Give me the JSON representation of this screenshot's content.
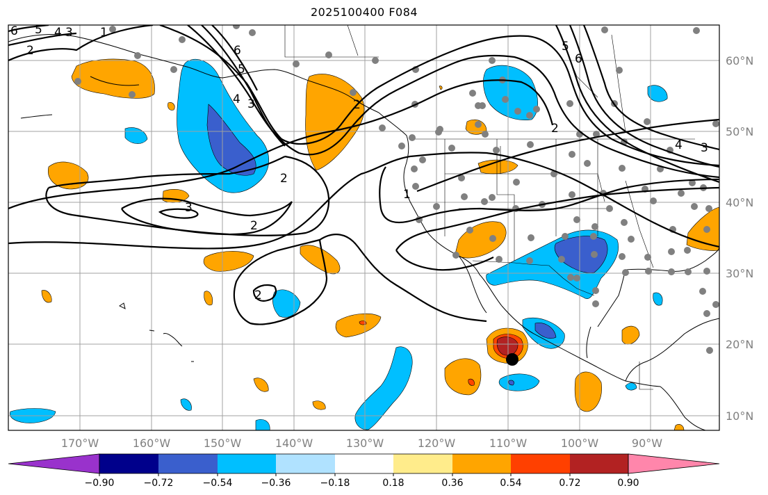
{
  "title": "2025100400 F084",
  "map": {
    "lon_labels": [
      "170°W",
      "160°W",
      "150°W",
      "140°W",
      "130°W",
      "120°W",
      "110°W",
      "100°W",
      "90°W"
    ],
    "lat_labels": [
      "60°N",
      "50°N",
      "40°N",
      "30°N",
      "20°N",
      "10°N"
    ],
    "contour_labels": [
      "6",
      "5",
      "4",
      "3",
      "2",
      "1",
      "6",
      "5",
      "4",
      "3",
      "2",
      "3",
      "2",
      "1",
      "2",
      "2",
      "5",
      "6",
      "4",
      "3",
      "2"
    ]
  },
  "colorbar": {
    "ticks": [
      "−0.90",
      "−0.72",
      "−0.54",
      "−0.36",
      "−0.18",
      "0.18",
      "0.36",
      "0.54",
      "0.72",
      "0.90"
    ],
    "colors": [
      "#9932cc",
      "#00008b",
      "#3a5fcd",
      "#00bfff",
      "#b0e2ff",
      "#ffffff",
      "#ffec8b",
      "#ffa500",
      "#ff4000",
      "#b22222",
      "#ff86ab"
    ]
  },
  "colors": {
    "orange": "#ffa500",
    "orange_red": "#ff4500",
    "dark_red": "#b22222",
    "deep_sky_blue": "#00bfff",
    "royal_blue": "#3a5fcd",
    "station_gray": "#808080",
    "grid_gray": "#a0a0a0",
    "axis_label_gray": "#808080"
  }
}
